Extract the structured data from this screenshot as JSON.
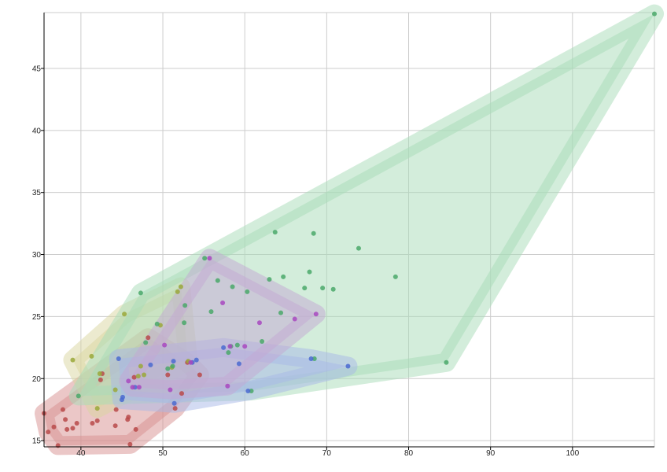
{
  "chart_data": {
    "type": "scatter",
    "title": "",
    "xlabel": "",
    "ylabel": "",
    "xlim": [
      35.5,
      110
    ],
    "ylim": [
      14.5,
      49.5
    ],
    "x_ticks": [
      40,
      50,
      60,
      70,
      80,
      90,
      100
    ],
    "y_ticks": [
      15,
      20,
      25,
      30,
      35,
      40,
      45
    ],
    "grid": true,
    "legend": "none",
    "hull_style": "convex hull behind each group",
    "series": [
      {
        "color": "#b84a4a",
        "hull_color": "#d89090",
        "points": [
          [
            35.5,
            17.2
          ],
          [
            36,
            15.7
          ],
          [
            36.7,
            16.1
          ],
          [
            37.2,
            14.6
          ],
          [
            37.8,
            17.5
          ],
          [
            38.3,
            15.9
          ],
          [
            38.1,
            16.7
          ],
          [
            39,
            16
          ],
          [
            39.5,
            16.4
          ],
          [
            41.4,
            16.4
          ],
          [
            42,
            16.6
          ],
          [
            42.4,
            19.9
          ],
          [
            42.6,
            20.4
          ],
          [
            44.3,
            17.5
          ],
          [
            44.2,
            16.2
          ],
          [
            45.7,
            16.7
          ],
          [
            45.8,
            16.9
          ],
          [
            46,
            14.7
          ],
          [
            46.7,
            15.9
          ],
          [
            46.5,
            20.1
          ],
          [
            48.2,
            23.3
          ],
          [
            50.6,
            20.3
          ],
          [
            51.5,
            17.6
          ],
          [
            52.3,
            18.8
          ],
          [
            53,
            21.3
          ],
          [
            54.5,
            20.3
          ]
        ]
      },
      {
        "color": "#9aa83a",
        "hull_color": "#d9d6a0",
        "points": [
          [
            39,
            21.5
          ],
          [
            41.3,
            21.8
          ],
          [
            42,
            17.6
          ],
          [
            42.3,
            20.4
          ],
          [
            44.2,
            19.1
          ],
          [
            45.3,
            25.2
          ],
          [
            47,
            20.2
          ],
          [
            47.3,
            21
          ],
          [
            47.7,
            20.3
          ],
          [
            49.7,
            24.3
          ],
          [
            51.1,
            20.9
          ],
          [
            52.2,
            27.4
          ],
          [
            51.8,
            27
          ],
          [
            53.1,
            21.4
          ]
        ]
      },
      {
        "color": "#4aa86a",
        "hull_color": "#a8dcb8",
        "points": [
          [
            39.7,
            18.6
          ],
          [
            47.3,
            26.9
          ],
          [
            47.9,
            22.9
          ],
          [
            49.3,
            24.4
          ],
          [
            50.6,
            20.8
          ],
          [
            51.2,
            21
          ],
          [
            52.6,
            24.5
          ],
          [
            52.7,
            25.9
          ],
          [
            55.1,
            29.7
          ],
          [
            55.9,
            25.4
          ],
          [
            56.7,
            27.9
          ],
          [
            58,
            22.1
          ],
          [
            58.3,
            22.6
          ],
          [
            58.5,
            27.4
          ],
          [
            59.1,
            22.7
          ],
          [
            60.3,
            27
          ],
          [
            60.8,
            19
          ],
          [
            62.1,
            23
          ],
          [
            63,
            28
          ],
          [
            63.7,
            31.8
          ],
          [
            64.4,
            25.3
          ],
          [
            64.7,
            28.2
          ],
          [
            67.3,
            27.3
          ],
          [
            67.9,
            28.6
          ],
          [
            68.4,
            31.7
          ],
          [
            68.5,
            21.6
          ],
          [
            69.5,
            27.3
          ],
          [
            70.8,
            27.2
          ],
          [
            73.9,
            30.5
          ],
          [
            78.4,
            28.2
          ],
          [
            84.6,
            21.3
          ],
          [
            110,
            49.4
          ]
        ]
      },
      {
        "color": "#4a6ad0",
        "hull_color": "#a8b8e8",
        "points": [
          [
            44.6,
            21.6
          ],
          [
            45,
            18.3
          ],
          [
            45.1,
            18.5
          ],
          [
            46.6,
            19.3
          ],
          [
            48.5,
            21.1
          ],
          [
            51.3,
            21.4
          ],
          [
            51.4,
            18
          ],
          [
            53.6,
            21.3
          ],
          [
            54.1,
            21.5
          ],
          [
            57.4,
            22.5
          ],
          [
            59.3,
            21.2
          ],
          [
            60.4,
            19
          ],
          [
            68.1,
            21.6
          ],
          [
            72.6,
            21
          ]
        ]
      },
      {
        "color": "#a848c0",
        "hull_color": "#c4a8d4",
        "points": [
          [
            45.8,
            19.8
          ],
          [
            46.3,
            19.3
          ],
          [
            47.1,
            19.3
          ],
          [
            50.2,
            22.7
          ],
          [
            50.9,
            19.1
          ],
          [
            53.4,
            21.3
          ],
          [
            55.7,
            29.7
          ],
          [
            57.3,
            26.1
          ],
          [
            57.9,
            19.4
          ],
          [
            58.2,
            22.6
          ],
          [
            60,
            22.6
          ],
          [
            61.8,
            24.5
          ],
          [
            66.1,
            24.8
          ],
          [
            68.7,
            25.2
          ]
        ]
      }
    ]
  }
}
